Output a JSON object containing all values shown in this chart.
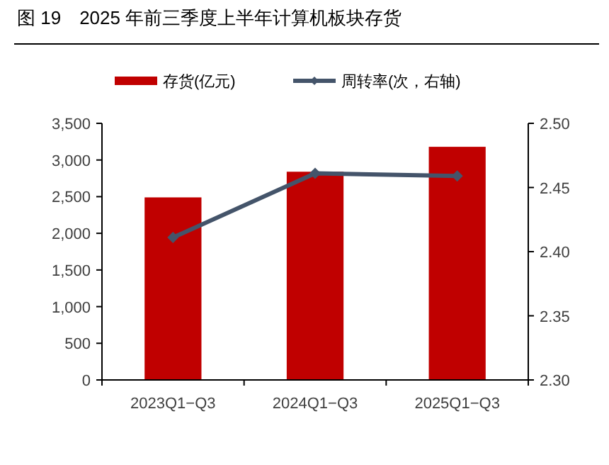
{
  "chart_data": {
    "type": "bar",
    "title": "图 19　2025 年前三季度上半年计算机板块存货",
    "categories": [
      "2023Q1−Q3",
      "2024Q1−Q3",
      "2025Q1−Q3"
    ],
    "series": [
      {
        "name": "存货(亿元)",
        "color": "#c00000",
        "values": [
          2490,
          2840,
          3180
        ]
      },
      {
        "name": "周转率(次，右轴)",
        "type": "line",
        "axis": "y2",
        "color": "#44546a",
        "marker": "diamond",
        "values": [
          2.411,
          2.461,
          2.459
        ]
      }
    ],
    "ylim": [
      0,
      3500
    ],
    "yticks": [
      {
        "value": 0,
        "label": "0"
      },
      {
        "value": 500,
        "label": "500"
      },
      {
        "value": 1000,
        "label": "1,000"
      },
      {
        "value": 1500,
        "label": "1,500"
      },
      {
        "value": 2000,
        "label": "2,000"
      },
      {
        "value": 2500,
        "label": "2,500"
      },
      {
        "value": 3000,
        "label": "3,000"
      },
      {
        "value": 3500,
        "label": "3,500"
      }
    ],
    "y2lim": [
      2.3,
      2.5
    ],
    "y2ticks": [
      {
        "value": 2.3,
        "label": "2.30"
      },
      {
        "value": 2.35,
        "label": "2.35"
      },
      {
        "value": 2.4,
        "label": "2.40"
      },
      {
        "value": 2.45,
        "label": "2.45"
      },
      {
        "value": 2.5,
        "label": "2.50"
      }
    ],
    "legend": "top",
    "grid": false
  }
}
